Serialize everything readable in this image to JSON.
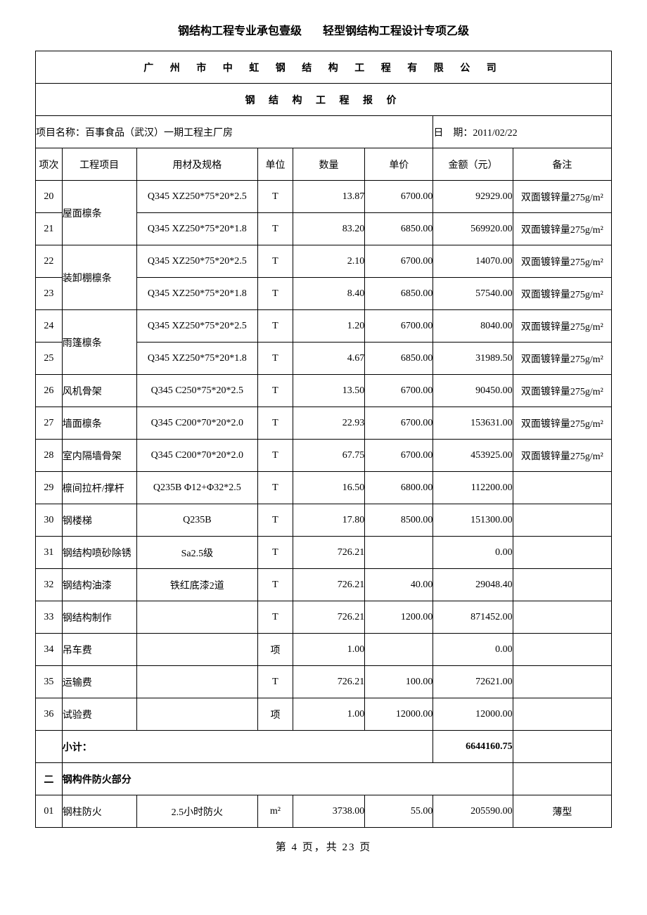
{
  "header": {
    "left": "钢结构工程专业承包壹级",
    "right": "轻型钢结构工程设计专项乙级"
  },
  "company": "广 州 市 中 虹 钢 结 构 工 程 有 限 公 司",
  "doc_title": "钢 结 构 工 程 报 价",
  "project_label": "项目名称：",
  "project_name": "百事食品（武汉）一期工程主厂房",
  "date_label": "日　期：",
  "date_value": "2011/02/22",
  "columns": {
    "no": "项次",
    "item": "工程项目",
    "spec": "用材及规格",
    "unit": "单位",
    "qty": "数量",
    "price": "单价",
    "amount": "金额（元）",
    "remark": "备注"
  },
  "rows": [
    {
      "no": "20",
      "item": "屋面檩条",
      "spec": "Q345 XZ250*75*20*2.5",
      "unit": "T",
      "qty": "13.87",
      "price": "6700.00",
      "amount": "92929.00",
      "remark": "双面镀锌量275g/m²",
      "merge_item": 2
    },
    {
      "no": "21",
      "item": "",
      "spec": "Q345 XZ250*75*20*1.8",
      "unit": "T",
      "qty": "83.20",
      "price": "6850.00",
      "amount": "569920.00",
      "remark": "双面镀锌量275g/m²",
      "skip_item": true
    },
    {
      "no": "22",
      "item": "装卸棚檩条",
      "spec": "Q345 XZ250*75*20*2.5",
      "unit": "T",
      "qty": "2.10",
      "price": "6700.00",
      "amount": "14070.00",
      "remark": "双面镀锌量275g/m²",
      "merge_item": 2
    },
    {
      "no": "23",
      "item": "",
      "spec": "Q345 XZ250*75*20*1.8",
      "unit": "T",
      "qty": "8.40",
      "price": "6850.00",
      "amount": "57540.00",
      "remark": "双面镀锌量275g/m²",
      "skip_item": true
    },
    {
      "no": "24",
      "item": "雨篷檩条",
      "spec": "Q345 XZ250*75*20*2.5",
      "unit": "T",
      "qty": "1.20",
      "price": "6700.00",
      "amount": "8040.00",
      "remark": "双面镀锌量275g/m²",
      "merge_item": 2
    },
    {
      "no": "25",
      "item": "",
      "spec": "Q345 XZ250*75*20*1.8",
      "unit": "T",
      "qty": "4.67",
      "price": "6850.00",
      "amount": "31989.50",
      "remark": "双面镀锌量275g/m²",
      "skip_item": true
    },
    {
      "no": "26",
      "item": "风机骨架",
      "spec": "Q345 C250*75*20*2.5",
      "unit": "T",
      "qty": "13.50",
      "price": "6700.00",
      "amount": "90450.00",
      "remark": "双面镀锌量275g/m²"
    },
    {
      "no": "27",
      "item": "墙面檩条",
      "spec": "Q345 C200*70*20*2.0",
      "unit": "T",
      "qty": "22.93",
      "price": "6700.00",
      "amount": "153631.00",
      "remark": "双面镀锌量275g/m²"
    },
    {
      "no": "28",
      "item": "室内隔墙骨架",
      "spec": "Q345 C200*70*20*2.0",
      "unit": "T",
      "qty": "67.75",
      "price": "6700.00",
      "amount": "453925.00",
      "remark": "双面镀锌量275g/m²"
    },
    {
      "no": "29",
      "item": "檩间拉杆/撑杆",
      "spec": "Q235B Φ12+Φ32*2.5",
      "unit": "T",
      "qty": "16.50",
      "price": "6800.00",
      "amount": "112200.00",
      "remark": ""
    },
    {
      "no": "30",
      "item": "钢楼梯",
      "spec": "Q235B",
      "unit": "T",
      "qty": "17.80",
      "price": "8500.00",
      "amount": "151300.00",
      "remark": ""
    },
    {
      "no": "31",
      "item": "钢结构喷砂除锈",
      "spec": "Sa2.5级",
      "unit": "T",
      "qty": "726.21",
      "price": "",
      "amount": "0.00",
      "remark": ""
    },
    {
      "no": "32",
      "item": "钢结构油漆",
      "spec": "铁红底漆2道",
      "unit": "T",
      "qty": "726.21",
      "price": "40.00",
      "amount": "29048.40",
      "remark": ""
    },
    {
      "no": "33",
      "item": "钢结构制作",
      "spec": "",
      "unit": "T",
      "qty": "726.21",
      "price": "1200.00",
      "amount": "871452.00",
      "remark": ""
    },
    {
      "no": "34",
      "item": "吊车费",
      "spec": "",
      "unit": "项",
      "qty": "1.00",
      "price": "",
      "amount": "0.00",
      "remark": ""
    },
    {
      "no": "35",
      "item": "运输费",
      "spec": "",
      "unit": "T",
      "qty": "726.21",
      "price": "100.00",
      "amount": "72621.00",
      "remark": ""
    },
    {
      "no": "36",
      "item": "试验费",
      "spec": "",
      "unit": "项",
      "qty": "1.00",
      "price": "12000.00",
      "amount": "12000.00",
      "remark": ""
    }
  ],
  "subtotal": {
    "label": "小计：",
    "amount": "6644160.75"
  },
  "section2": {
    "no": "二",
    "title": "钢构件防火部分"
  },
  "section2_rows": [
    {
      "no": "01",
      "item": "钢柱防火",
      "spec": "2.5小时防火",
      "unit": "m²",
      "qty": "3738.00",
      "price": "55.00",
      "amount": "205590.00",
      "remark": "薄型"
    }
  ],
  "footer": "第 4 页，共 23 页"
}
